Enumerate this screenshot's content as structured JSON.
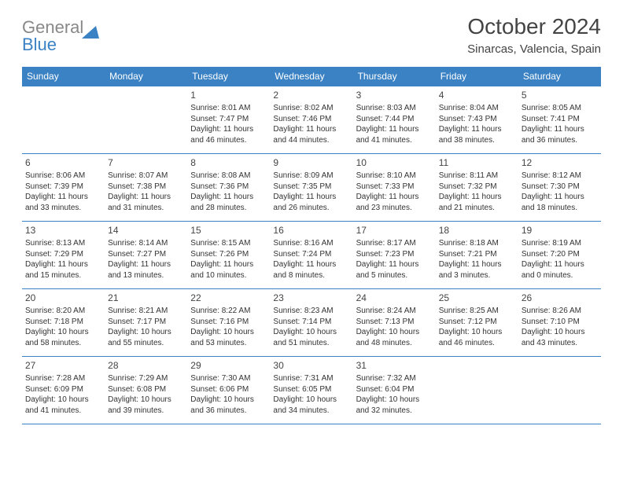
{
  "brand": {
    "word1": "General",
    "word2": "Blue"
  },
  "colors": {
    "header_bg": "#3b82c4",
    "border": "#3b82c4",
    "text": "#333333",
    "logo_gray": "#888888",
    "logo_blue": "#3b82c4",
    "background": "#ffffff"
  },
  "title": "October 2024",
  "location": "Sinarcas, Valencia, Spain",
  "weekdays": [
    "Sunday",
    "Monday",
    "Tuesday",
    "Wednesday",
    "Thursday",
    "Friday",
    "Saturday"
  ],
  "weeks": [
    [
      null,
      null,
      {
        "d": "1",
        "sr": "Sunrise: 8:01 AM",
        "ss": "Sunset: 7:47 PM",
        "dl": "Daylight: 11 hours and 46 minutes."
      },
      {
        "d": "2",
        "sr": "Sunrise: 8:02 AM",
        "ss": "Sunset: 7:46 PM",
        "dl": "Daylight: 11 hours and 44 minutes."
      },
      {
        "d": "3",
        "sr": "Sunrise: 8:03 AM",
        "ss": "Sunset: 7:44 PM",
        "dl": "Daylight: 11 hours and 41 minutes."
      },
      {
        "d": "4",
        "sr": "Sunrise: 8:04 AM",
        "ss": "Sunset: 7:43 PM",
        "dl": "Daylight: 11 hours and 38 minutes."
      },
      {
        "d": "5",
        "sr": "Sunrise: 8:05 AM",
        "ss": "Sunset: 7:41 PM",
        "dl": "Daylight: 11 hours and 36 minutes."
      }
    ],
    [
      {
        "d": "6",
        "sr": "Sunrise: 8:06 AM",
        "ss": "Sunset: 7:39 PM",
        "dl": "Daylight: 11 hours and 33 minutes."
      },
      {
        "d": "7",
        "sr": "Sunrise: 8:07 AM",
        "ss": "Sunset: 7:38 PM",
        "dl": "Daylight: 11 hours and 31 minutes."
      },
      {
        "d": "8",
        "sr": "Sunrise: 8:08 AM",
        "ss": "Sunset: 7:36 PM",
        "dl": "Daylight: 11 hours and 28 minutes."
      },
      {
        "d": "9",
        "sr": "Sunrise: 8:09 AM",
        "ss": "Sunset: 7:35 PM",
        "dl": "Daylight: 11 hours and 26 minutes."
      },
      {
        "d": "10",
        "sr": "Sunrise: 8:10 AM",
        "ss": "Sunset: 7:33 PM",
        "dl": "Daylight: 11 hours and 23 minutes."
      },
      {
        "d": "11",
        "sr": "Sunrise: 8:11 AM",
        "ss": "Sunset: 7:32 PM",
        "dl": "Daylight: 11 hours and 21 minutes."
      },
      {
        "d": "12",
        "sr": "Sunrise: 8:12 AM",
        "ss": "Sunset: 7:30 PM",
        "dl": "Daylight: 11 hours and 18 minutes."
      }
    ],
    [
      {
        "d": "13",
        "sr": "Sunrise: 8:13 AM",
        "ss": "Sunset: 7:29 PM",
        "dl": "Daylight: 11 hours and 15 minutes."
      },
      {
        "d": "14",
        "sr": "Sunrise: 8:14 AM",
        "ss": "Sunset: 7:27 PM",
        "dl": "Daylight: 11 hours and 13 minutes."
      },
      {
        "d": "15",
        "sr": "Sunrise: 8:15 AM",
        "ss": "Sunset: 7:26 PM",
        "dl": "Daylight: 11 hours and 10 minutes."
      },
      {
        "d": "16",
        "sr": "Sunrise: 8:16 AM",
        "ss": "Sunset: 7:24 PM",
        "dl": "Daylight: 11 hours and 8 minutes."
      },
      {
        "d": "17",
        "sr": "Sunrise: 8:17 AM",
        "ss": "Sunset: 7:23 PM",
        "dl": "Daylight: 11 hours and 5 minutes."
      },
      {
        "d": "18",
        "sr": "Sunrise: 8:18 AM",
        "ss": "Sunset: 7:21 PM",
        "dl": "Daylight: 11 hours and 3 minutes."
      },
      {
        "d": "19",
        "sr": "Sunrise: 8:19 AM",
        "ss": "Sunset: 7:20 PM",
        "dl": "Daylight: 11 hours and 0 minutes."
      }
    ],
    [
      {
        "d": "20",
        "sr": "Sunrise: 8:20 AM",
        "ss": "Sunset: 7:18 PM",
        "dl": "Daylight: 10 hours and 58 minutes."
      },
      {
        "d": "21",
        "sr": "Sunrise: 8:21 AM",
        "ss": "Sunset: 7:17 PM",
        "dl": "Daylight: 10 hours and 55 minutes."
      },
      {
        "d": "22",
        "sr": "Sunrise: 8:22 AM",
        "ss": "Sunset: 7:16 PM",
        "dl": "Daylight: 10 hours and 53 minutes."
      },
      {
        "d": "23",
        "sr": "Sunrise: 8:23 AM",
        "ss": "Sunset: 7:14 PM",
        "dl": "Daylight: 10 hours and 51 minutes."
      },
      {
        "d": "24",
        "sr": "Sunrise: 8:24 AM",
        "ss": "Sunset: 7:13 PM",
        "dl": "Daylight: 10 hours and 48 minutes."
      },
      {
        "d": "25",
        "sr": "Sunrise: 8:25 AM",
        "ss": "Sunset: 7:12 PM",
        "dl": "Daylight: 10 hours and 46 minutes."
      },
      {
        "d": "26",
        "sr": "Sunrise: 8:26 AM",
        "ss": "Sunset: 7:10 PM",
        "dl": "Daylight: 10 hours and 43 minutes."
      }
    ],
    [
      {
        "d": "27",
        "sr": "Sunrise: 7:28 AM",
        "ss": "Sunset: 6:09 PM",
        "dl": "Daylight: 10 hours and 41 minutes."
      },
      {
        "d": "28",
        "sr": "Sunrise: 7:29 AM",
        "ss": "Sunset: 6:08 PM",
        "dl": "Daylight: 10 hours and 39 minutes."
      },
      {
        "d": "29",
        "sr": "Sunrise: 7:30 AM",
        "ss": "Sunset: 6:06 PM",
        "dl": "Daylight: 10 hours and 36 minutes."
      },
      {
        "d": "30",
        "sr": "Sunrise: 7:31 AM",
        "ss": "Sunset: 6:05 PM",
        "dl": "Daylight: 10 hours and 34 minutes."
      },
      {
        "d": "31",
        "sr": "Sunrise: 7:32 AM",
        "ss": "Sunset: 6:04 PM",
        "dl": "Daylight: 10 hours and 32 minutes."
      },
      null,
      null
    ]
  ]
}
